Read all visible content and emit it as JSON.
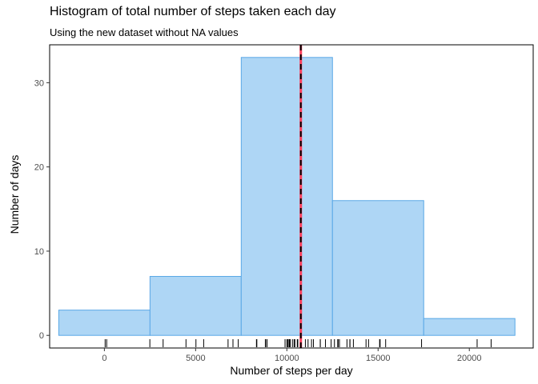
{
  "chart_data": {
    "type": "bar",
    "title": "Histogram of total number of steps taken each day",
    "subtitle": "Using the new dataset without NA values",
    "xlabel": "Number of steps per day",
    "ylabel": "Number of days",
    "xlim": [
      -3000,
      23500
    ],
    "ylim": [
      -1.5,
      34.5
    ],
    "xticks": [
      0,
      5000,
      10000,
      15000,
      20000
    ],
    "xtick_labels": [
      "0",
      "5000",
      "10000",
      "15000",
      "20000"
    ],
    "yticks": [
      0,
      10,
      20,
      30
    ],
    "ytick_labels": [
      "0",
      "10",
      "20",
      "30"
    ],
    "bins": [
      {
        "from": -2500,
        "to": 2500,
        "count": 3
      },
      {
        "from": 2500,
        "to": 7500,
        "count": 7
      },
      {
        "from": 7500,
        "to": 12500,
        "count": 33
      },
      {
        "from": 12500,
        "to": 17500,
        "count": 16
      },
      {
        "from": 17500,
        "to": 22500,
        "count": 2
      }
    ],
    "bar_fill": "#aed6f5",
    "bar_stroke": "#5aa8e6",
    "mean_line": {
      "x": 10766,
      "color": "#ff3d5a",
      "style": "solid"
    },
    "median_line": {
      "x": 10766,
      "color": "#000000",
      "style": "dashed"
    },
    "rug": [
      41,
      126,
      2492,
      3219,
      4472,
      5018,
      5441,
      6778,
      7047,
      7336,
      8334,
      8355,
      8821,
      8841,
      8918,
      9900,
      10000,
      10056,
      10119,
      10139,
      10183,
      10304,
      10395,
      10439,
      10571,
      10600,
      10765,
      10766,
      11015,
      11162,
      11352,
      11458,
      11829,
      11834,
      12116,
      12426,
      12608,
      12787,
      12811,
      12883,
      13294,
      13452,
      13460,
      13646,
      14339,
      14478,
      15084,
      15098,
      15110,
      15414,
      17382,
      20427,
      21194
    ],
    "grid": false,
    "legend": "none"
  }
}
